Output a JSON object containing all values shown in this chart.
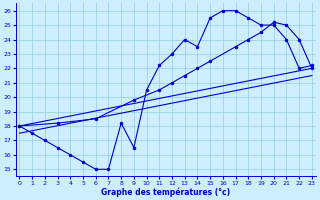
{
  "line1_x": [
    0,
    1,
    2,
    3,
    4,
    5,
    6,
    7,
    8,
    9,
    10,
    11,
    12,
    13,
    14,
    15,
    16,
    17,
    18,
    19,
    20,
    21,
    22,
    23
  ],
  "line1_y": [
    18.0,
    17.5,
    17.0,
    16.5,
    16.0,
    15.5,
    15.0,
    15.0,
    18.2,
    16.5,
    20.5,
    22.2,
    23.0,
    24.0,
    23.5,
    25.5,
    26.0,
    26.0,
    25.5,
    25.0,
    25.0,
    24.0,
    22.0,
    22.2
  ],
  "line2_x": [
    0,
    23
  ],
  "line2_y": [
    18.0,
    22.0
  ],
  "line3_x": [
    0,
    23
  ],
  "line3_y": [
    17.5,
    21.5
  ],
  "line4_x": [
    0,
    3,
    6,
    9,
    11,
    12,
    13,
    14,
    15,
    17,
    18,
    19,
    20,
    21,
    22,
    23
  ],
  "line4_y": [
    18.0,
    18.2,
    18.5,
    19.8,
    20.5,
    21.0,
    21.5,
    22.0,
    22.5,
    23.5,
    24.0,
    24.5,
    25.2,
    25.0,
    24.0,
    22.0
  ],
  "line_color": "#0000cc",
  "bg_color": "#cceeff",
  "grid_color": "#99cce0",
  "xlim": [
    -0.3,
    23.3
  ],
  "ylim": [
    14.5,
    26.5
  ],
  "yticks": [
    15,
    16,
    17,
    18,
    19,
    20,
    21,
    22,
    23,
    24,
    25,
    26
  ],
  "xticks": [
    0,
    1,
    2,
    3,
    4,
    5,
    6,
    7,
    8,
    9,
    10,
    11,
    12,
    13,
    14,
    15,
    16,
    17,
    18,
    19,
    20,
    21,
    22,
    23
  ],
  "xlabel": "Graphe des températures (°c)",
  "figwidth": 3.2,
  "figheight": 2.0,
  "dpi": 100
}
